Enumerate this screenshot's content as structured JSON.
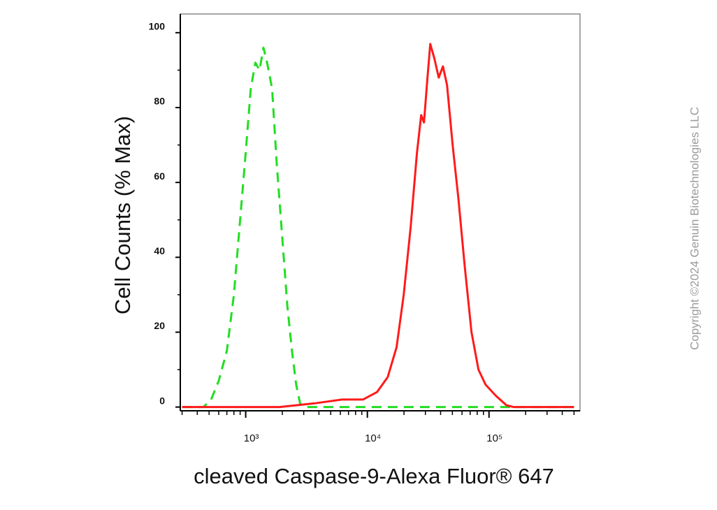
{
  "chart_data": {
    "type": "histogram-line",
    "xlabel": "cleaved Caspase-9-Alexa Fluor® 647",
    "ylabel": "Cell Counts (% Max)",
    "watermark": "Copyright ©2024 Genuin Biotechnologies LLC",
    "xscale": "log",
    "xlim": [
      290,
      560000
    ],
    "ylim": [
      -1,
      105
    ],
    "xticks": [
      {
        "value": 1000,
        "label": "10³"
      },
      {
        "value": 10000,
        "label": "10⁴"
      },
      {
        "value": 100000,
        "label": "10⁵"
      }
    ],
    "xminorticks": [
      300,
      400,
      500,
      600,
      700,
      800,
      900,
      2000,
      3000,
      4000,
      5000,
      6000,
      7000,
      8000,
      9000,
      20000,
      30000,
      40000,
      50000,
      60000,
      70000,
      80000,
      90000,
      200000,
      300000,
      400000,
      500000
    ],
    "yticks": [
      0,
      20,
      40,
      60,
      80,
      100
    ],
    "yminorticks": [
      10,
      30,
      50,
      70,
      90
    ],
    "series": [
      {
        "color": "#22dd22",
        "linestyle": "dashed",
        "x": [
          300,
          450,
          520,
          600,
          700,
          800,
          900,
          1000,
          1100,
          1200,
          1300,
          1400,
          1500,
          1650,
          1800,
          2000,
          2200,
          2400,
          2600,
          2800,
          3000,
          500000
        ],
        "values": [
          0,
          0,
          2,
          7,
          15,
          30,
          50,
          68,
          85,
          92,
          90,
          96,
          92,
          85,
          65,
          45,
          27,
          15,
          6,
          1,
          0,
          0
        ]
      },
      {
        "color": "#ff1a1a",
        "linestyle": "solid",
        "x": [
          300,
          1900,
          3700,
          6200,
          9200,
          12000,
          14700,
          17400,
          19900,
          22700,
          25600,
          27700,
          29200,
          31200,
          32900,
          35600,
          38600,
          41800,
          45200,
          50200,
          55900,
          63000,
          71800,
          82000,
          93600,
          114000,
          139000,
          159000,
          500000
        ],
        "values": [
          0,
          0,
          1,
          2,
          2,
          4,
          8,
          16,
          30,
          48,
          68,
          78,
          76,
          88,
          97,
          93,
          88,
          91,
          86,
          70,
          56,
          38,
          20,
          10,
          6,
          3,
          0.5,
          0,
          0
        ]
      }
    ]
  }
}
